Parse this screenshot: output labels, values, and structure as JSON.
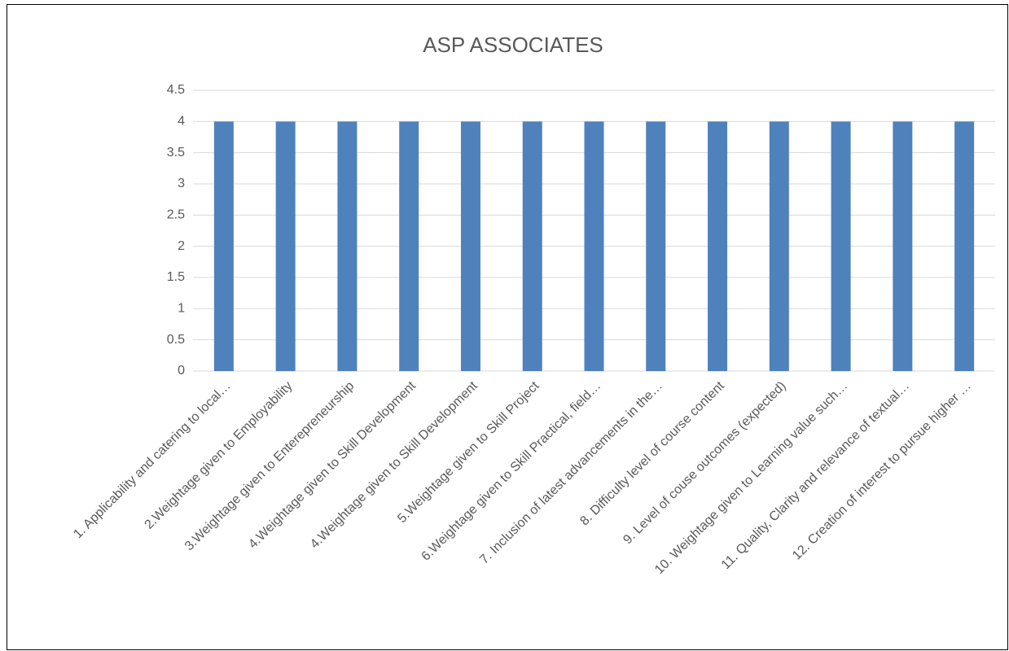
{
  "chart_data": {
    "type": "bar",
    "title": "ASP ASSOCIATES",
    "categories": [
      "1. Applicability and catering to local…",
      "2.Weightage given to Employability",
      "3.Weightage given to Enterepreneurship",
      "4.Weightage given to Skill Development",
      "4.Weightage given to Skill Development",
      "5.Weightage given to Skill Project",
      "6.Weightage given to Skill Practical, field…",
      "7. Inclusion of latest advancements in the…",
      "8. Difficulty level of course content",
      "9. Level of couse outcomes (expected)",
      "10. Weightage given to Learning value such…",
      "11. Quality, Clarity and relevance of textual…",
      "12. Creation of interest to pursue higher …"
    ],
    "values": [
      4,
      4,
      4,
      4,
      4,
      4,
      4,
      4,
      4,
      4,
      4,
      4,
      4
    ],
    "color": "#4f81bd",
    "ylim": [
      0,
      4.5
    ],
    "yticks": [
      0,
      0.5,
      1,
      1.5,
      2,
      2.5,
      3,
      3.5,
      4,
      4.5
    ],
    "grid": true
  }
}
